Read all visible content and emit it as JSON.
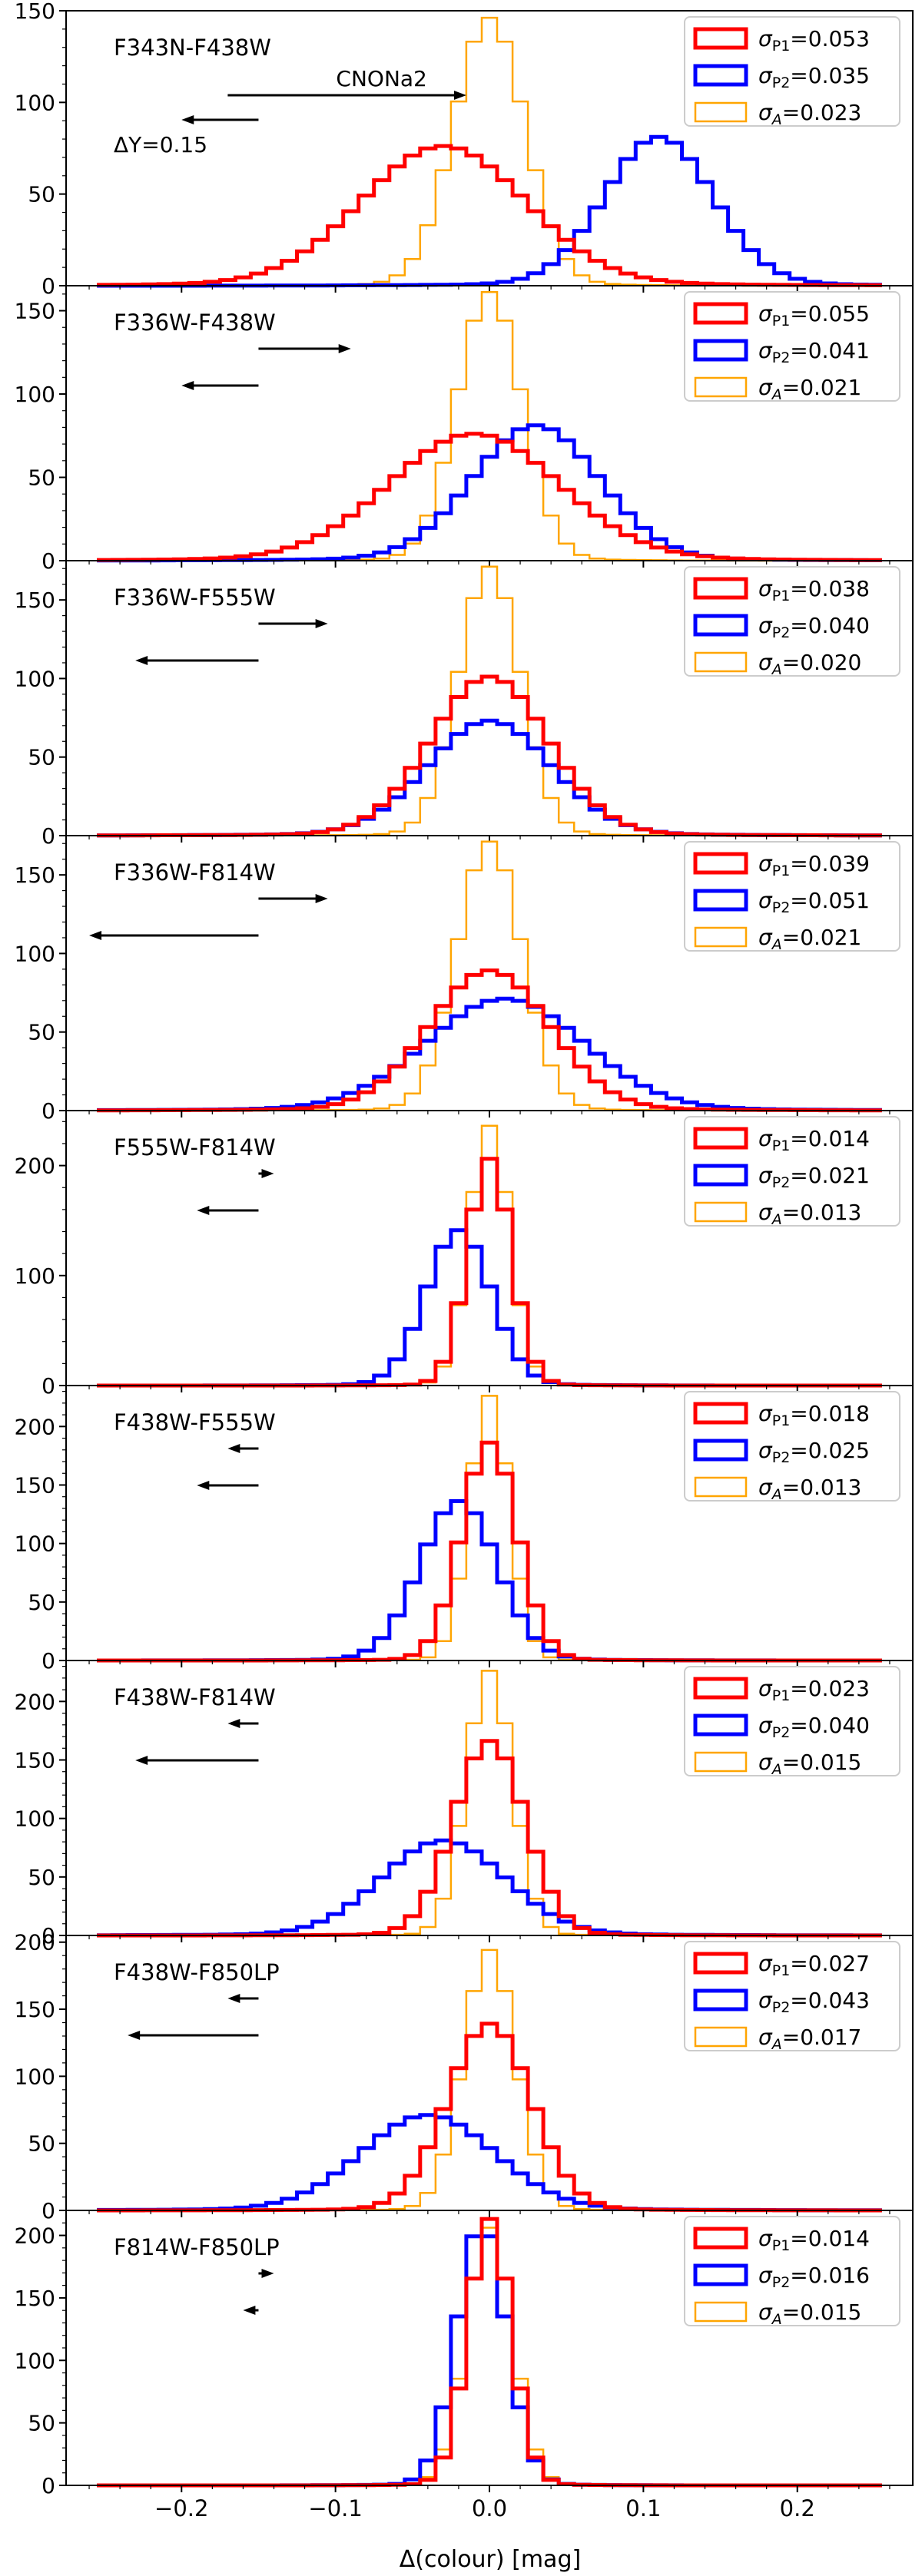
{
  "figure": {
    "xlabel": "Δ(colour) [mag]",
    "xlim": [
      -0.275,
      0.275
    ],
    "xticks": [
      -0.2,
      -0.1,
      0.0,
      0.1,
      0.2
    ],
    "xtick_labels": [
      "−0.2",
      "−0.1",
      "0.0",
      "0.1",
      "0.2"
    ]
  },
  "colors": {
    "p1": "#ff0000",
    "p2": "#0000ff",
    "a": "#ffa500"
  },
  "chart_data": [
    {
      "type": "histogram",
      "title": "F343N-F438W",
      "ylim": [
        0,
        150
      ],
      "yticks": [
        0,
        50,
        100,
        150
      ],
      "ytick_labels": [
        "0",
        "50",
        "100",
        "150"
      ],
      "legend": {
        "location": "top-right",
        "entries": [
          {
            "label": "σP1=0.053"
          },
          {
            "label": "σP2=0.035"
          },
          {
            "label": "σA=0.023"
          }
        ]
      },
      "arrows": [
        {
          "label": "CNONa2",
          "from": -0.17,
          "to": -0.015
        },
        {
          "label": "ΔY=0.15",
          "from": -0.15,
          "to": -0.2
        }
      ],
      "series": [
        {
          "name": "σP1=0.053",
          "color": "red",
          "center": -0.03,
          "sigma": 0.053,
          "peak": 75
        },
        {
          "name": "σP2=0.035",
          "color": "blue",
          "center": 0.11,
          "sigma": 0.035,
          "peak": 80
        },
        {
          "name": "σA=0.023",
          "color": "orange",
          "center": 0.0,
          "sigma": 0.023,
          "peak": 145
        }
      ]
    },
    {
      "type": "histogram",
      "title": "F336W-F438W",
      "ylim": [
        0,
        165
      ],
      "yticks": [
        0,
        50,
        100,
        150
      ],
      "ytick_labels": [
        "0",
        "50",
        "100",
        "150"
      ],
      "legend": {
        "location": "top-right",
        "entries": [
          {
            "label": "σP1=0.055"
          },
          {
            "label": "σP2=0.041"
          },
          {
            "label": "σA=0.021"
          }
        ]
      },
      "arrows": [
        {
          "from": -0.15,
          "to": -0.09
        },
        {
          "from": -0.15,
          "to": -0.2
        }
      ],
      "series": [
        {
          "name": "σP1=0.055",
          "color": "red",
          "center": -0.01,
          "sigma": 0.055,
          "peak": 75
        },
        {
          "name": "σP2=0.041",
          "color": "blue",
          "center": 0.03,
          "sigma": 0.041,
          "peak": 80
        },
        {
          "name": "σA=0.021",
          "color": "orange",
          "center": 0.0,
          "sigma": 0.021,
          "peak": 160
        }
      ]
    },
    {
      "type": "histogram",
      "title": "F336W-F555W",
      "ylim": [
        0,
        175
      ],
      "yticks": [
        0,
        50,
        100,
        150
      ],
      "ytick_labels": [
        "0",
        "50",
        "100",
        "150"
      ],
      "legend": {
        "location": "top-right",
        "entries": [
          {
            "label": "σP1=0.038"
          },
          {
            "label": "σP2=0.040"
          },
          {
            "label": "σA=0.020"
          }
        ]
      },
      "arrows": [
        {
          "from": -0.15,
          "to": -0.105
        },
        {
          "from": -0.15,
          "to": -0.23
        }
      ],
      "series": [
        {
          "name": "σP1=0.038",
          "color": "red",
          "center": 0.0,
          "sigma": 0.038,
          "peak": 100
        },
        {
          "name": "σP2=0.040",
          "color": "blue",
          "center": 0.0,
          "sigma": 0.04,
          "peak": 72
        },
        {
          "name": "σA=0.020",
          "color": "orange",
          "center": 0.0,
          "sigma": 0.02,
          "peak": 170
        }
      ]
    },
    {
      "type": "histogram",
      "title": "F336W-F814W",
      "ylim": [
        0,
        175
      ],
      "yticks": [
        0,
        50,
        100,
        150
      ],
      "ytick_labels": [
        "0",
        "50",
        "100",
        "150"
      ],
      "legend": {
        "location": "top-right",
        "entries": [
          {
            "label": "σP1=0.039"
          },
          {
            "label": "σP2=0.051"
          },
          {
            "label": "σA=0.021"
          }
        ]
      },
      "arrows": [
        {
          "from": -0.15,
          "to": -0.105
        },
        {
          "from": -0.15,
          "to": -0.26
        }
      ],
      "series": [
        {
          "name": "σP1=0.039",
          "color": "red",
          "center": 0.0,
          "sigma": 0.039,
          "peak": 88
        },
        {
          "name": "σP2=0.051",
          "color": "blue",
          "center": 0.01,
          "sigma": 0.051,
          "peak": 70
        },
        {
          "name": "σA=0.021",
          "color": "orange",
          "center": 0.0,
          "sigma": 0.021,
          "peak": 170
        }
      ]
    },
    {
      "type": "histogram",
      "title": "F555W-F814W",
      "ylim": [
        0,
        250
      ],
      "yticks": [
        0,
        100,
        200
      ],
      "ytick_labels": [
        "0",
        "100",
        "200"
      ],
      "legend": {
        "location": "top-right",
        "entries": [
          {
            "label": "σP1=0.014"
          },
          {
            "label": "σP2=0.021"
          },
          {
            "label": "σA=0.013"
          }
        ]
      },
      "arrows": [
        {
          "from": -0.15,
          "to": -0.14
        },
        {
          "from": -0.15,
          "to": -0.19
        }
      ],
      "series": [
        {
          "name": "σP1=0.014",
          "color": "red",
          "center": 0.0,
          "sigma": 0.014,
          "peak": 205
        },
        {
          "name": "σP2=0.021",
          "color": "blue",
          "center": -0.02,
          "sigma": 0.021,
          "peak": 140
        },
        {
          "name": "σA=0.013",
          "color": "orange",
          "center": 0.0,
          "sigma": 0.013,
          "peak": 235
        }
      ]
    },
    {
      "type": "histogram",
      "title": "F438W-F555W",
      "ylim": [
        0,
        235
      ],
      "yticks": [
        0,
        50,
        100,
        150,
        200
      ],
      "ytick_labels": [
        "0",
        "50",
        "100",
        "150",
        "200"
      ],
      "legend": {
        "location": "top-right",
        "entries": [
          {
            "label": "σP1=0.018"
          },
          {
            "label": "σP2=0.025"
          },
          {
            "label": "σA=0.013"
          }
        ]
      },
      "arrows": [
        {
          "from": -0.15,
          "to": -0.17
        },
        {
          "from": -0.15,
          "to": -0.19
        }
      ],
      "series": [
        {
          "name": "σP1=0.018",
          "color": "red",
          "center": 0.0,
          "sigma": 0.018,
          "peak": 185
        },
        {
          "name": "σP2=0.025",
          "color": "blue",
          "center": -0.02,
          "sigma": 0.025,
          "peak": 135
        },
        {
          "name": "σA=0.013",
          "color": "orange",
          "center": 0.0,
          "sigma": 0.013,
          "peak": 225
        }
      ]
    },
    {
      "type": "histogram",
      "title": "F438W-F814W",
      "ylim": [
        0,
        235
      ],
      "yticks": [
        0,
        50,
        100,
        150,
        200
      ],
      "ytick_labels": [
        "0",
        "50",
        "100",
        "150",
        "200"
      ],
      "legend": {
        "location": "top-right",
        "entries": [
          {
            "label": "σP1=0.023"
          },
          {
            "label": "σP2=0.040"
          },
          {
            "label": "σA=0.015"
          }
        ]
      },
      "arrows": [
        {
          "from": -0.15,
          "to": -0.17
        },
        {
          "from": -0.15,
          "to": -0.23
        }
      ],
      "series": [
        {
          "name": "σP1=0.023",
          "color": "red",
          "center": 0.0,
          "sigma": 0.023,
          "peak": 165
        },
        {
          "name": "σP2=0.040",
          "color": "blue",
          "center": -0.03,
          "sigma": 0.04,
          "peak": 80
        },
        {
          "name": "σA=0.015",
          "color": "orange",
          "center": 0.0,
          "sigma": 0.015,
          "peak": 225
        }
      ]
    },
    {
      "type": "histogram",
      "title": "F438W-F850LP",
      "ylim": [
        0,
        205
      ],
      "yticks": [
        0,
        50,
        100,
        150,
        200
      ],
      "ytick_labels": [
        "0",
        "50",
        "100",
        "150",
        "200"
      ],
      "legend": {
        "location": "top-right",
        "entries": [
          {
            "label": "σP1=0.027"
          },
          {
            "label": "σP2=0.043"
          },
          {
            "label": "σA=0.017"
          }
        ]
      },
      "arrows": [
        {
          "from": -0.15,
          "to": -0.17
        },
        {
          "from": -0.15,
          "to": -0.235
        }
      ],
      "series": [
        {
          "name": "σP1=0.027",
          "color": "red",
          "center": 0.0,
          "sigma": 0.027,
          "peak": 138
        },
        {
          "name": "σP2=0.043",
          "color": "blue",
          "center": -0.04,
          "sigma": 0.043,
          "peak": 70
        },
        {
          "name": "σA=0.017",
          "color": "orange",
          "center": 0.0,
          "sigma": 0.017,
          "peak": 193
        }
      ]
    },
    {
      "type": "histogram",
      "title": "F814W-F850LP",
      "ylim": [
        0,
        220
      ],
      "yticks": [
        0,
        50,
        100,
        150,
        200
      ],
      "ytick_labels": [
        "0",
        "50",
        "100",
        "150",
        "200"
      ],
      "legend": {
        "location": "top-right",
        "entries": [
          {
            "label": "σP1=0.014"
          },
          {
            "label": "σP2=0.016"
          },
          {
            "label": "σA=0.015"
          }
        ]
      },
      "arrows": [
        {
          "from": -0.15,
          "to": -0.14
        },
        {
          "from": -0.15,
          "to": -0.16
        }
      ],
      "series": [
        {
          "name": "σP1=0.014",
          "color": "red",
          "center": 0.0,
          "sigma": 0.014,
          "peak": 212
        },
        {
          "name": "σP2=0.016",
          "color": "blue",
          "center": -0.005,
          "sigma": 0.016,
          "peak": 208
        },
        {
          "name": "σA=0.015",
          "color": "orange",
          "center": 0.0,
          "sigma": 0.015,
          "peak": 205
        }
      ]
    }
  ]
}
